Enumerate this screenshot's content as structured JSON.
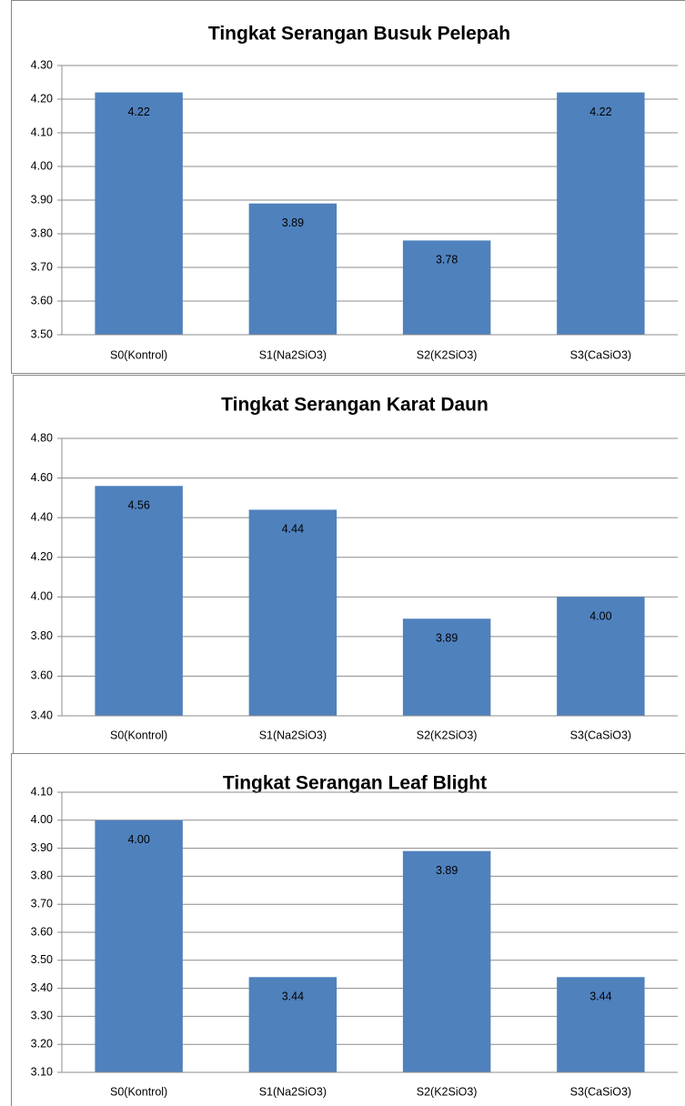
{
  "chart_data": [
    {
      "type": "bar",
      "title": "Tingkat Serangan Busuk Pelepah",
      "categories": [
        "S0(Kontrol)",
        "S1(Na2SiO3)",
        "S2(K2SiO3)",
        "S3(CaSiO3)"
      ],
      "values": [
        4.22,
        3.89,
        3.78,
        4.22
      ],
      "value_labels": [
        "4.22",
        "3.89",
        "3.78",
        "4.22"
      ],
      "color": "#4f81bd",
      "ylim": [
        3.5,
        4.3
      ],
      "yticks": [
        {
          "value": 3.5,
          "label": "3.50"
        },
        {
          "value": 3.6,
          "label": "3.60"
        },
        {
          "value": 3.7,
          "label": "3.70"
        },
        {
          "value": 3.8,
          "label": "3.80"
        },
        {
          "value": 3.9,
          "label": "3.90"
        },
        {
          "value": 4.0,
          "label": "4.00"
        },
        {
          "value": 4.1,
          "label": "4.10"
        },
        {
          "value": 4.2,
          "label": "4.20"
        },
        {
          "value": 4.3,
          "label": "4.30"
        }
      ],
      "grid": true
    },
    {
      "type": "bar",
      "title": "Tingkat Serangan Karat Daun",
      "categories": [
        "S0(Kontrol)",
        "S1(Na2SiO3)",
        "S2(K2SiO3)",
        "S3(CaSiO3)"
      ],
      "values": [
        4.56,
        4.44,
        3.89,
        4.0
      ],
      "value_labels": [
        "4.56",
        "4.44",
        "3.89",
        "4.00"
      ],
      "color": "#4f81bd",
      "ylim": [
        3.4,
        4.8
      ],
      "yticks": [
        {
          "value": 3.4,
          "label": "3.40"
        },
        {
          "value": 3.6,
          "label": "3.60"
        },
        {
          "value": 3.8,
          "label": "3.80"
        },
        {
          "value": 4.0,
          "label": "4.00"
        },
        {
          "value": 4.2,
          "label": "4.20"
        },
        {
          "value": 4.4,
          "label": "4.40"
        },
        {
          "value": 4.6,
          "label": "4.60"
        },
        {
          "value": 4.8,
          "label": "4.80"
        }
      ],
      "grid": true
    },
    {
      "type": "bar",
      "title": "Tingkat Serangan Leaf Blight",
      "categories": [
        "S0(Kontrol)",
        "S1(Na2SiO3)",
        "S2(K2SiO3)",
        "S3(CaSiO3)"
      ],
      "values": [
        4.0,
        3.44,
        3.89,
        3.44
      ],
      "value_labels": [
        "4.00",
        "3.44",
        "3.89",
        "3.44"
      ],
      "color": "#4f81bd",
      "ylim": [
        3.1,
        4.1
      ],
      "yticks": [
        {
          "value": 3.1,
          "label": "3.10"
        },
        {
          "value": 3.2,
          "label": "3.20"
        },
        {
          "value": 3.3,
          "label": "3.30"
        },
        {
          "value": 3.4,
          "label": "3.40"
        },
        {
          "value": 3.5,
          "label": "3.50"
        },
        {
          "value": 3.6,
          "label": "3.60"
        },
        {
          "value": 3.7,
          "label": "3.70"
        },
        {
          "value": 3.8,
          "label": "3.80"
        },
        {
          "value": 3.9,
          "label": "3.90"
        },
        {
          "value": 4.0,
          "label": "4.00"
        },
        {
          "value": 4.1,
          "label": "4.10"
        }
      ],
      "grid": true
    }
  ]
}
